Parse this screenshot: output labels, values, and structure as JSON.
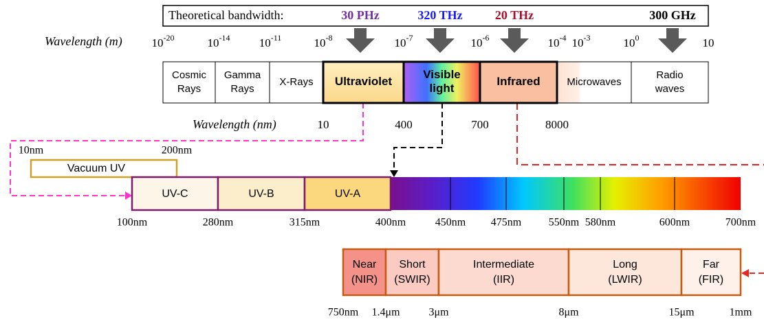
{
  "top_bar": {
    "label": "Theoretical bandwidth:",
    "frequencies": [
      "30 PHz",
      "320 THz",
      "20 THz",
      "300 GHz"
    ]
  },
  "wavelength_m": {
    "title": "Wavelength (m)",
    "ticks": [
      {
        "base": "10",
        "exp": "-20"
      },
      {
        "base": "10",
        "exp": "-14"
      },
      {
        "base": "10",
        "exp": "-11"
      },
      {
        "base": "10",
        "exp": "-8"
      },
      {
        "base": "10",
        "exp": "-7"
      },
      {
        "base": "10",
        "exp": "-6"
      },
      {
        "base": "10",
        "exp": "-4"
      },
      {
        "base": "10",
        "exp": "-3"
      },
      {
        "base": "10",
        "exp": "0"
      },
      {
        "base": "10"
      }
    ]
  },
  "bands": [
    [
      "Cosmic",
      "Rays"
    ],
    [
      "Gamma",
      "Rays"
    ],
    [
      "X-Rays"
    ],
    [
      "Ultraviolet"
    ],
    [
      "Visible",
      "light"
    ],
    [
      "Infrared"
    ],
    [
      "Microwaves"
    ],
    [
      "Radio",
      "waves"
    ]
  ],
  "wavelength_nm": {
    "title": "Wavelength (nm)",
    "ticks": [
      "10",
      "400",
      "700",
      "8000"
    ]
  },
  "uv": {
    "vacuum_start": "10nm",
    "vacuum_end": "200nm",
    "vacuum_label": "Vacuum UV",
    "bands": [
      "UV-C",
      "UV-B",
      "UV-A"
    ],
    "ticks": [
      "100nm",
      "280nm",
      "315nm",
      "400nm",
      "450nm",
      "475nm",
      "550nm",
      "580nm",
      "600nm",
      "700nm"
    ]
  },
  "ir": {
    "bands": [
      [
        "Near",
        "(NIR)"
      ],
      [
        "Short",
        "(SWIR)"
      ],
      [
        "Intermediate",
        "(IIR)"
      ],
      [
        "Long",
        "(LWIR)"
      ],
      [
        "Far",
        "(FIR)"
      ]
    ],
    "ticks": [
      "750nm",
      "1.4μm",
      "3μm",
      "8μm",
      "15μm",
      "1mm"
    ]
  }
}
